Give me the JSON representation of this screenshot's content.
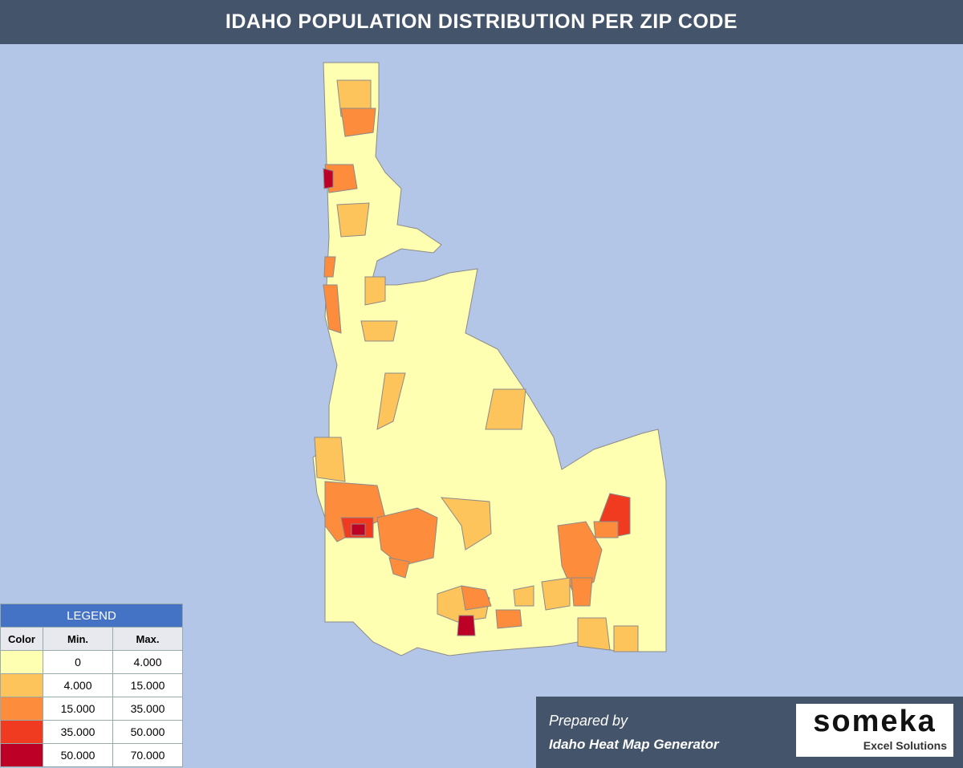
{
  "header": {
    "title": "IDAHO POPULATION DISTRIBUTION PER ZIP CODE"
  },
  "legend": {
    "title": "LEGEND",
    "columns": [
      "Color",
      "Min.",
      "Max."
    ],
    "rows": [
      {
        "color": "#ffffb2",
        "min": "0",
        "max": "4.000"
      },
      {
        "color": "#fec45c",
        "min": "4.000",
        "max": "15.000"
      },
      {
        "color": "#fd8d3c",
        "min": "15.000",
        "max": "35.000"
      },
      {
        "color": "#f03b20",
        "min": "35.000",
        "max": "50.000"
      },
      {
        "color": "#bd0026",
        "min": "50.000",
        "max": "70.000"
      }
    ]
  },
  "footer": {
    "prepared": "Prepared by",
    "generator": "Idaho Heat Map Generator",
    "logo": "someka",
    "logo_sub": "Excel Solutions"
  }
}
